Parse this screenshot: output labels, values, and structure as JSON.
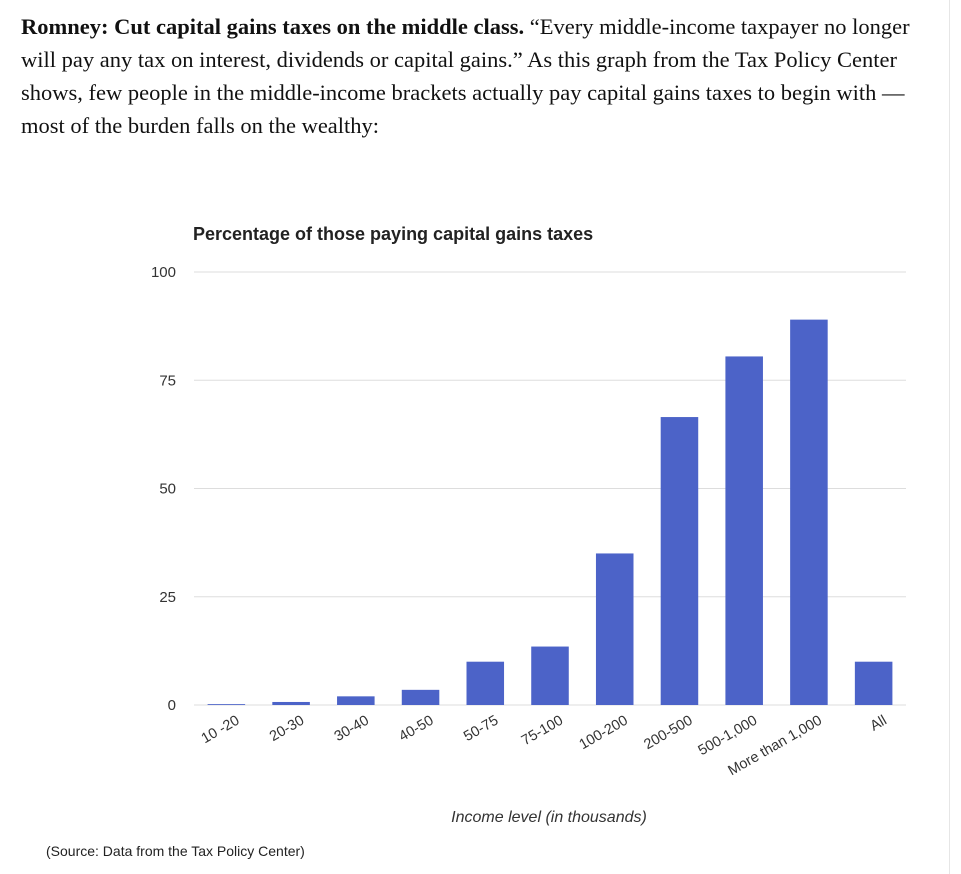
{
  "article": {
    "headline": "Romney: Cut capital gains taxes on the middle class.",
    "body": " “Every middle-income taxpayer no longer will pay any tax on interest, dividends or capital gains.” As this graph from the Tax Policy Center shows, few people in the middle-income brackets actually pay capital gains taxes to begin with — most of the burden falls on the wealthy:"
  },
  "chart_data": {
    "type": "bar",
    "title": "Percentage of those paying capital gains taxes",
    "xlabel": "Income level (in thousands)",
    "ylabel": "",
    "categories": [
      "10 -20",
      "20-30",
      "30-40",
      "40-50",
      "50-75",
      "75-100",
      "100-200",
      "200-500",
      "500-1,000",
      "More than 1,000",
      "All"
    ],
    "values": [
      0.2,
      0.7,
      2,
      3.5,
      10,
      13.5,
      35,
      66.5,
      80.5,
      89,
      10
    ],
    "ylim": [
      0,
      100
    ],
    "yticks": [
      "0",
      "25",
      "50",
      "75",
      "100"
    ],
    "grid": true,
    "legend": "none",
    "bar_color": "#4c63c8",
    "grid_color": "#dddddd"
  },
  "source": "(Source: Data from the Tax Policy Center)"
}
